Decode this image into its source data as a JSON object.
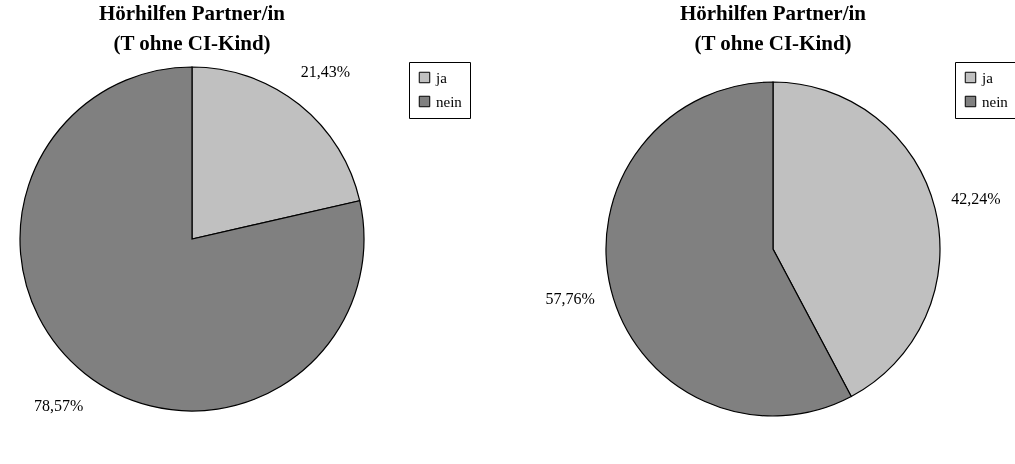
{
  "chart_data": [
    {
      "type": "pie",
      "title": "Hörhilfen Partner/in\n(T ohne CI-Kind)",
      "categories": [
        "ja",
        "nein"
      ],
      "values": [
        21.43,
        78.57
      ],
      "colors": [
        "#c0c0c0",
        "#808080"
      ],
      "value_labels": [
        "21,43%",
        "78,57%"
      ],
      "legend": "top right"
    },
    {
      "type": "pie",
      "title": "Hörhilfen Partner/in\n(T ohne CI-Kind)",
      "categories": [
        "ja",
        "nein"
      ],
      "values": [
        42.24,
        57.76
      ],
      "colors": [
        "#c0c0c0",
        "#808080"
      ],
      "value_labels": [
        "42,24%",
        "57,76%"
      ],
      "legend": "top right"
    }
  ]
}
